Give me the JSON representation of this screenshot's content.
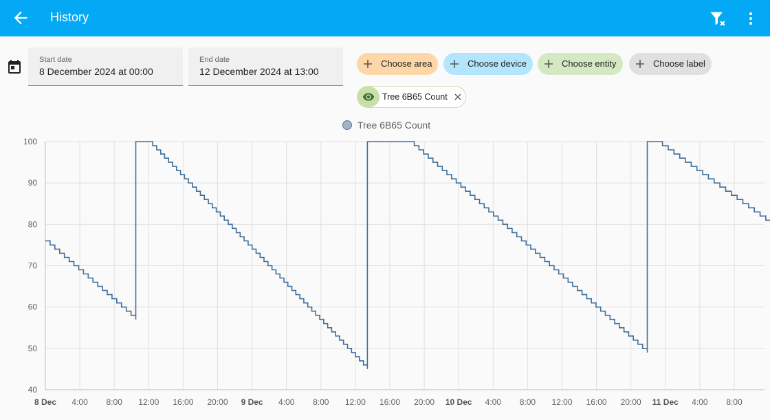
{
  "header": {
    "title": "History",
    "back_icon": "arrow-left-icon",
    "filter_icon": "filter-remove-icon",
    "menu_icon": "dots-vertical-icon"
  },
  "dates": {
    "start_label": "Start date",
    "start_value": "8 December 2024 at 00:00",
    "end_label": "End date",
    "end_value": "12 December 2024 at 13:00"
  },
  "targets": {
    "area": "Choose area",
    "device": "Choose device",
    "entity": "Choose entity",
    "label": "Choose label",
    "selected_entity": "Tree 6B65 Count"
  },
  "colors": {
    "accent": "#03a9f4",
    "line": "#3e6e99",
    "area_chip": "#fdd7a8",
    "device_chip": "#b3e5fc",
    "entity_chip": "#d4e9c1",
    "label_chip": "#e0e0e0"
  },
  "chart_data": {
    "type": "line",
    "legend": [
      "Tree 6B65 Count"
    ],
    "ylim": [
      40,
      100
    ],
    "yticks": [
      "100",
      "90",
      "80",
      "70",
      "60",
      "50",
      "40"
    ],
    "xticks": [
      {
        "label": "8 Dec",
        "bold": true
      },
      {
        "label": "4:00"
      },
      {
        "label": "8:00"
      },
      {
        "label": "12:00"
      },
      {
        "label": "16:00"
      },
      {
        "label": "20:00"
      },
      {
        "label": "9 Dec",
        "bold": true
      },
      {
        "label": "4:00"
      },
      {
        "label": "8:00"
      },
      {
        "label": "12:00"
      },
      {
        "label": "16:00"
      },
      {
        "label": "20:00"
      },
      {
        "label": "10 Dec",
        "bold": true
      },
      {
        "label": "4:00"
      },
      {
        "label": "8:00"
      },
      {
        "label": "12:00"
      },
      {
        "label": "16:00"
      },
      {
        "label": "20:00"
      },
      {
        "label": "11 Dec",
        "bold": true
      },
      {
        "label": "4:00"
      },
      {
        "label": "8:00"
      }
    ],
    "x_unit": "hours since 8 Dec 00:00",
    "xlim": [
      0,
      85
    ],
    "series": [
      {
        "name": "Tree 6B65 Count",
        "points": [
          [
            0,
            76
          ],
          [
            10.5,
            57
          ],
          [
            10.5,
            100
          ],
          [
            12,
            100
          ],
          [
            37.4,
            45
          ],
          [
            37.4,
            100
          ],
          [
            42.3,
            100
          ],
          [
            69.9,
            49
          ],
          [
            69.9,
            100
          ],
          [
            71,
            100
          ],
          [
            85,
            79
          ]
        ]
      }
    ]
  }
}
